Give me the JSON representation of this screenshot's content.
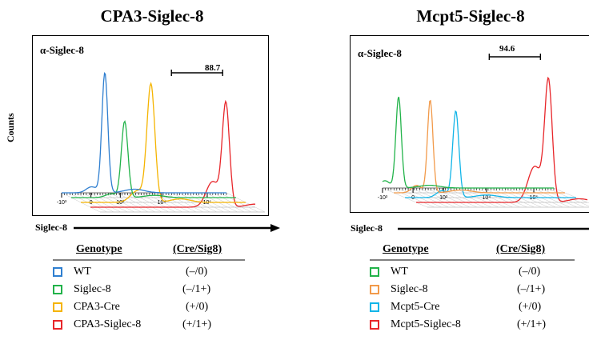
{
  "panels": [
    {
      "title": "CPA3-Siglec-8",
      "panel_label": "α-Siglec-8",
      "y_axis_label": "Counts",
      "x_axis_label": "Siglec-8",
      "gate_value": "88.7",
      "tick_labels": [
        "-10³",
        "0",
        "10³",
        "10⁴",
        "10⁵"
      ],
      "legend_header": {
        "genotype": "Genotype",
        "code": "(Cre/Sig8)"
      },
      "legend": [
        {
          "name": "WT",
          "genotype": "(–/0)",
          "color": "#2f7fd0"
        },
        {
          "name": "Siglec-8",
          "genotype": "(–/1+)",
          "color": "#22b34a"
        },
        {
          "name": "CPA3-Cre",
          "genotype": "(+/0)",
          "color": "#f5b400"
        },
        {
          "name": "CPA3-Siglec-8",
          "genotype": "(+/1+)",
          "color": "#e8262a"
        }
      ]
    },
    {
      "title": "Mcpt5-Siglec-8",
      "panel_label": "α-Siglec-8",
      "x_axis_label": "Siglec-8",
      "gate_value": "94.6",
      "tick_labels": [
        "-10³",
        "0",
        "10³",
        "10⁴",
        "10⁵"
      ],
      "legend_header": {
        "genotype": "Genotype",
        "code": "(Cre/Sig8)"
      },
      "legend": [
        {
          "name": "WT",
          "genotype": "(–/0)",
          "color": "#22b34a"
        },
        {
          "name": "Siglec-8",
          "genotype": "(–/1+)",
          "color": "#f29a4a"
        },
        {
          "name": "Mcpt5-Cre",
          "genotype": "(+/0)",
          "color": "#12b5e8"
        },
        {
          "name": "Mcpt5-Siglec-8",
          "genotype": "(+/1+)",
          "color": "#e8262a"
        }
      ]
    }
  ],
  "chart_data": [
    {
      "type": "area",
      "title": "CPA3-Siglec-8",
      "xlabel": "Siglec-8",
      "ylabel": "Counts",
      "x_scale": "biexponential",
      "gate": {
        "label": "88.7",
        "percent": 88.7
      },
      "series": [
        {
          "name": "WT",
          "peak_x": 300,
          "color": "#2f7fd0"
        },
        {
          "name": "Siglec-8",
          "peak_x": 700,
          "color": "#22b34a"
        },
        {
          "name": "CPA3-Cre",
          "peak_x": 2000,
          "color": "#f5b400"
        },
        {
          "name": "CPA3-Siglec-8",
          "peak_x": 60000,
          "color": "#e8262a"
        }
      ]
    },
    {
      "type": "area",
      "title": "Mcpt5-Siglec-8",
      "xlabel": "Siglec-8",
      "x_scale": "biexponential",
      "gate": {
        "label": "94.6",
        "percent": 94.6
      },
      "series": [
        {
          "name": "WT",
          "peak_x": -300,
          "color": "#22b34a"
        },
        {
          "name": "Siglec-8",
          "peak_x": 100,
          "color": "#f29a4a"
        },
        {
          "name": "Mcpt5-Cre",
          "peak_x": 500,
          "color": "#12b5e8"
        },
        {
          "name": "Mcpt5-Siglec-8",
          "peak_x": 40000,
          "color": "#e8262a"
        }
      ]
    }
  ]
}
